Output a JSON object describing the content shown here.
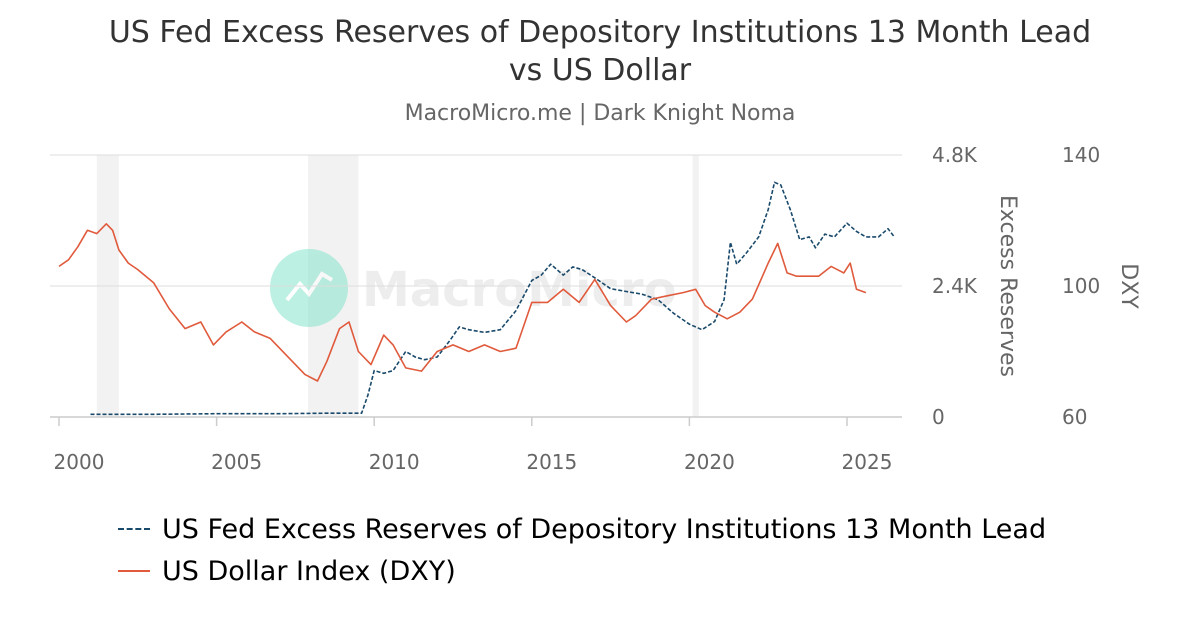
{
  "header": {
    "title": "US Fed Excess Reserves of Depository Institutions 13 Month Lead vs US Dollar",
    "subtitle": "MacroMicro.me | Dark Knight Noma"
  },
  "watermark": "MacroMicro",
  "colors": {
    "reserves": "#1a4a6b",
    "dxy": "#e05a3c",
    "recession": "#f2f2f2",
    "grid": "#dddddd",
    "watermark_icon": "#7be3c8"
  },
  "chart_data": {
    "type": "line",
    "x_ticks": [
      2000,
      2005,
      2010,
      2015,
      2020,
      2025
    ],
    "xlim": [
      2000,
      2026.7
    ],
    "recessions": [
      [
        2001.2,
        2001.9
      ],
      [
        2007.9,
        2009.5
      ],
      [
        2020.1,
        2020.3
      ]
    ],
    "y_left": {
      "label": "Excess Reserves",
      "ticks": [
        "0",
        "2.4K",
        "4.8K"
      ],
      "ylim": [
        0,
        4800
      ]
    },
    "y_right": {
      "label": "DXY",
      "ticks": [
        "60",
        "100",
        "140"
      ],
      "ylim": [
        60,
        140
      ]
    },
    "grid": true,
    "legend_position": "bottom",
    "series": [
      {
        "name": "US Fed Excess Reserves of Depository Institutions 13 Month Lead",
        "axis": "left",
        "style": "dashed",
        "x": [
          2001.0,
          2003.0,
          2005.0,
          2007.0,
          2008.5,
          2009.6,
          2009.8,
          2010.0,
          2010.3,
          2010.6,
          2011.0,
          2011.3,
          2011.6,
          2012.0,
          2012.4,
          2012.7,
          2013.0,
          2013.5,
          2014.0,
          2014.5,
          2015.0,
          2015.3,
          2015.6,
          2016.0,
          2016.3,
          2016.6,
          2017.0,
          2017.5,
          2018.0,
          2018.5,
          2019.0,
          2019.5,
          2020.0,
          2020.4,
          2020.8,
          2021.1,
          2021.3,
          2021.5,
          2021.8,
          2022.2,
          2022.5,
          2022.7,
          2022.9,
          2023.2,
          2023.5,
          2023.8,
          2024.0,
          2024.3,
          2024.6,
          2025.0,
          2025.3,
          2025.6,
          2026.0,
          2026.3,
          2026.5
        ],
        "values": [
          50,
          50,
          60,
          60,
          70,
          70,
          400,
          850,
          800,
          850,
          1200,
          1100,
          1050,
          1100,
          1400,
          1650,
          1600,
          1550,
          1600,
          1950,
          2500,
          2600,
          2800,
          2600,
          2750,
          2700,
          2550,
          2350,
          2300,
          2250,
          2150,
          1900,
          1700,
          1600,
          1750,
          2150,
          3200,
          2800,
          3000,
          3300,
          3800,
          4300,
          4250,
          3800,
          3250,
          3300,
          3100,
          3350,
          3300,
          3550,
          3400,
          3300,
          3300,
          3450,
          3300
        ]
      },
      {
        "name": "US Dollar Index (DXY)",
        "axis": "right",
        "style": "solid",
        "x": [
          2000.0,
          2000.3,
          2000.6,
          2000.9,
          2001.2,
          2001.5,
          2001.7,
          2001.9,
          2002.2,
          2002.5,
          2003.0,
          2003.5,
          2004.0,
          2004.5,
          2004.9,
          2005.3,
          2005.8,
          2006.2,
          2006.7,
          2007.3,
          2007.8,
          2008.2,
          2008.5,
          2008.9,
          2009.2,
          2009.5,
          2009.9,
          2010.3,
          2010.6,
          2011.0,
          2011.5,
          2012.0,
          2012.5,
          2013.0,
          2013.5,
          2014.0,
          2014.5,
          2015.0,
          2015.5,
          2016.0,
          2016.5,
          2017.0,
          2017.5,
          2018.0,
          2018.3,
          2018.8,
          2019.3,
          2019.8,
          2020.2,
          2020.5,
          2020.8,
          2021.2,
          2021.6,
          2022.0,
          2022.5,
          2022.8,
          2023.1,
          2023.4,
          2023.8,
          2024.1,
          2024.5,
          2024.9,
          2025.1,
          2025.3,
          2025.6
        ],
        "values": [
          106,
          108,
          112,
          117,
          116,
          119,
          117,
          111,
          107,
          105,
          101,
          93,
          87,
          89,
          82,
          86,
          89,
          86,
          84,
          78,
          73,
          71,
          77,
          87,
          89,
          80,
          76,
          85,
          82,
          75,
          74,
          80,
          82,
          80,
          82,
          80,
          81,
          95,
          95,
          99,
          95,
          102,
          94,
          89,
          91,
          96,
          97,
          98,
          99,
          94,
          92,
          90,
          92,
          96,
          107,
          113,
          104,
          103,
          103,
          103,
          106,
          104,
          107,
          99,
          98
        ]
      }
    ]
  }
}
